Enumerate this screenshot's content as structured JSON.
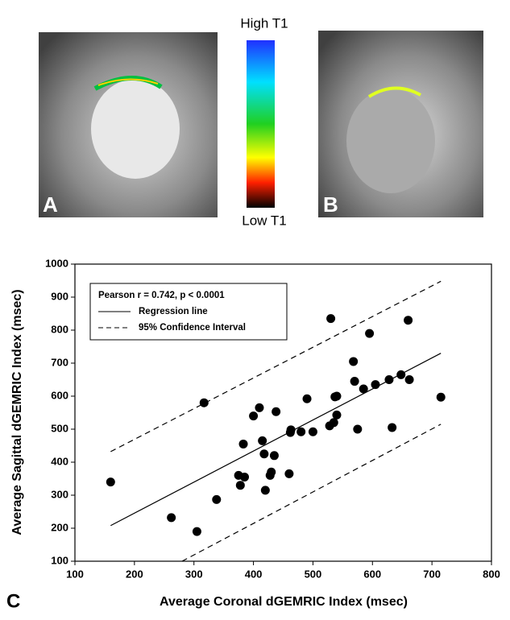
{
  "figure": {
    "panel_labels": [
      "A",
      "B",
      "C"
    ],
    "colorbar": {
      "high_label": "High T1",
      "low_label": "Low T1"
    }
  },
  "chart_data": {
    "type": "scatter",
    "x_label": "Average Coronal dGEMRIC Index (msec)",
    "y_label": "Average Sagittal dGEMRIC Index (msec)",
    "annotation": "Pearson r = 0.742, p < 0.0001",
    "color": "#000000",
    "x": [
      160,
      262,
      305,
      317,
      338,
      375,
      378,
      383,
      385,
      400,
      410,
      415,
      418,
      420,
      428,
      430,
      435,
      438,
      460,
      462,
      463,
      480,
      490,
      500,
      530,
      528,
      535,
      537,
      540,
      540,
      568,
      570,
      575,
      585,
      595,
      605,
      628,
      633,
      648,
      660,
      662,
      715
    ],
    "y": [
      340,
      232,
      190,
      580,
      287,
      360,
      330,
      455,
      355,
      540,
      565,
      465,
      425,
      315,
      360,
      370,
      420,
      553,
      365,
      490,
      498,
      492,
      592,
      492,
      835,
      510,
      520,
      598,
      600,
      543,
      705,
      645,
      500,
      622,
      790,
      635,
      650,
      505,
      665,
      830,
      650,
      597
    ],
    "regression": {
      "name": "Regression line",
      "x": [
        160,
        715
      ],
      "values": [
        208,
        730
      ]
    },
    "confidence": {
      "name": "95% Confidence Interval",
      "upper_x": [
        160,
        715
      ],
      "upper": [
        432,
        948
      ],
      "lower_x": [
        280,
        715
      ],
      "lower": [
        100,
        515
      ]
    },
    "xlim": [
      100,
      800
    ],
    "xticks": [
      100,
      200,
      300,
      400,
      500,
      600,
      700,
      800
    ],
    "ylim": [
      100,
      1000
    ],
    "yticks": [
      100,
      200,
      300,
      400,
      500,
      600,
      700,
      800,
      900,
      1000
    ]
  }
}
